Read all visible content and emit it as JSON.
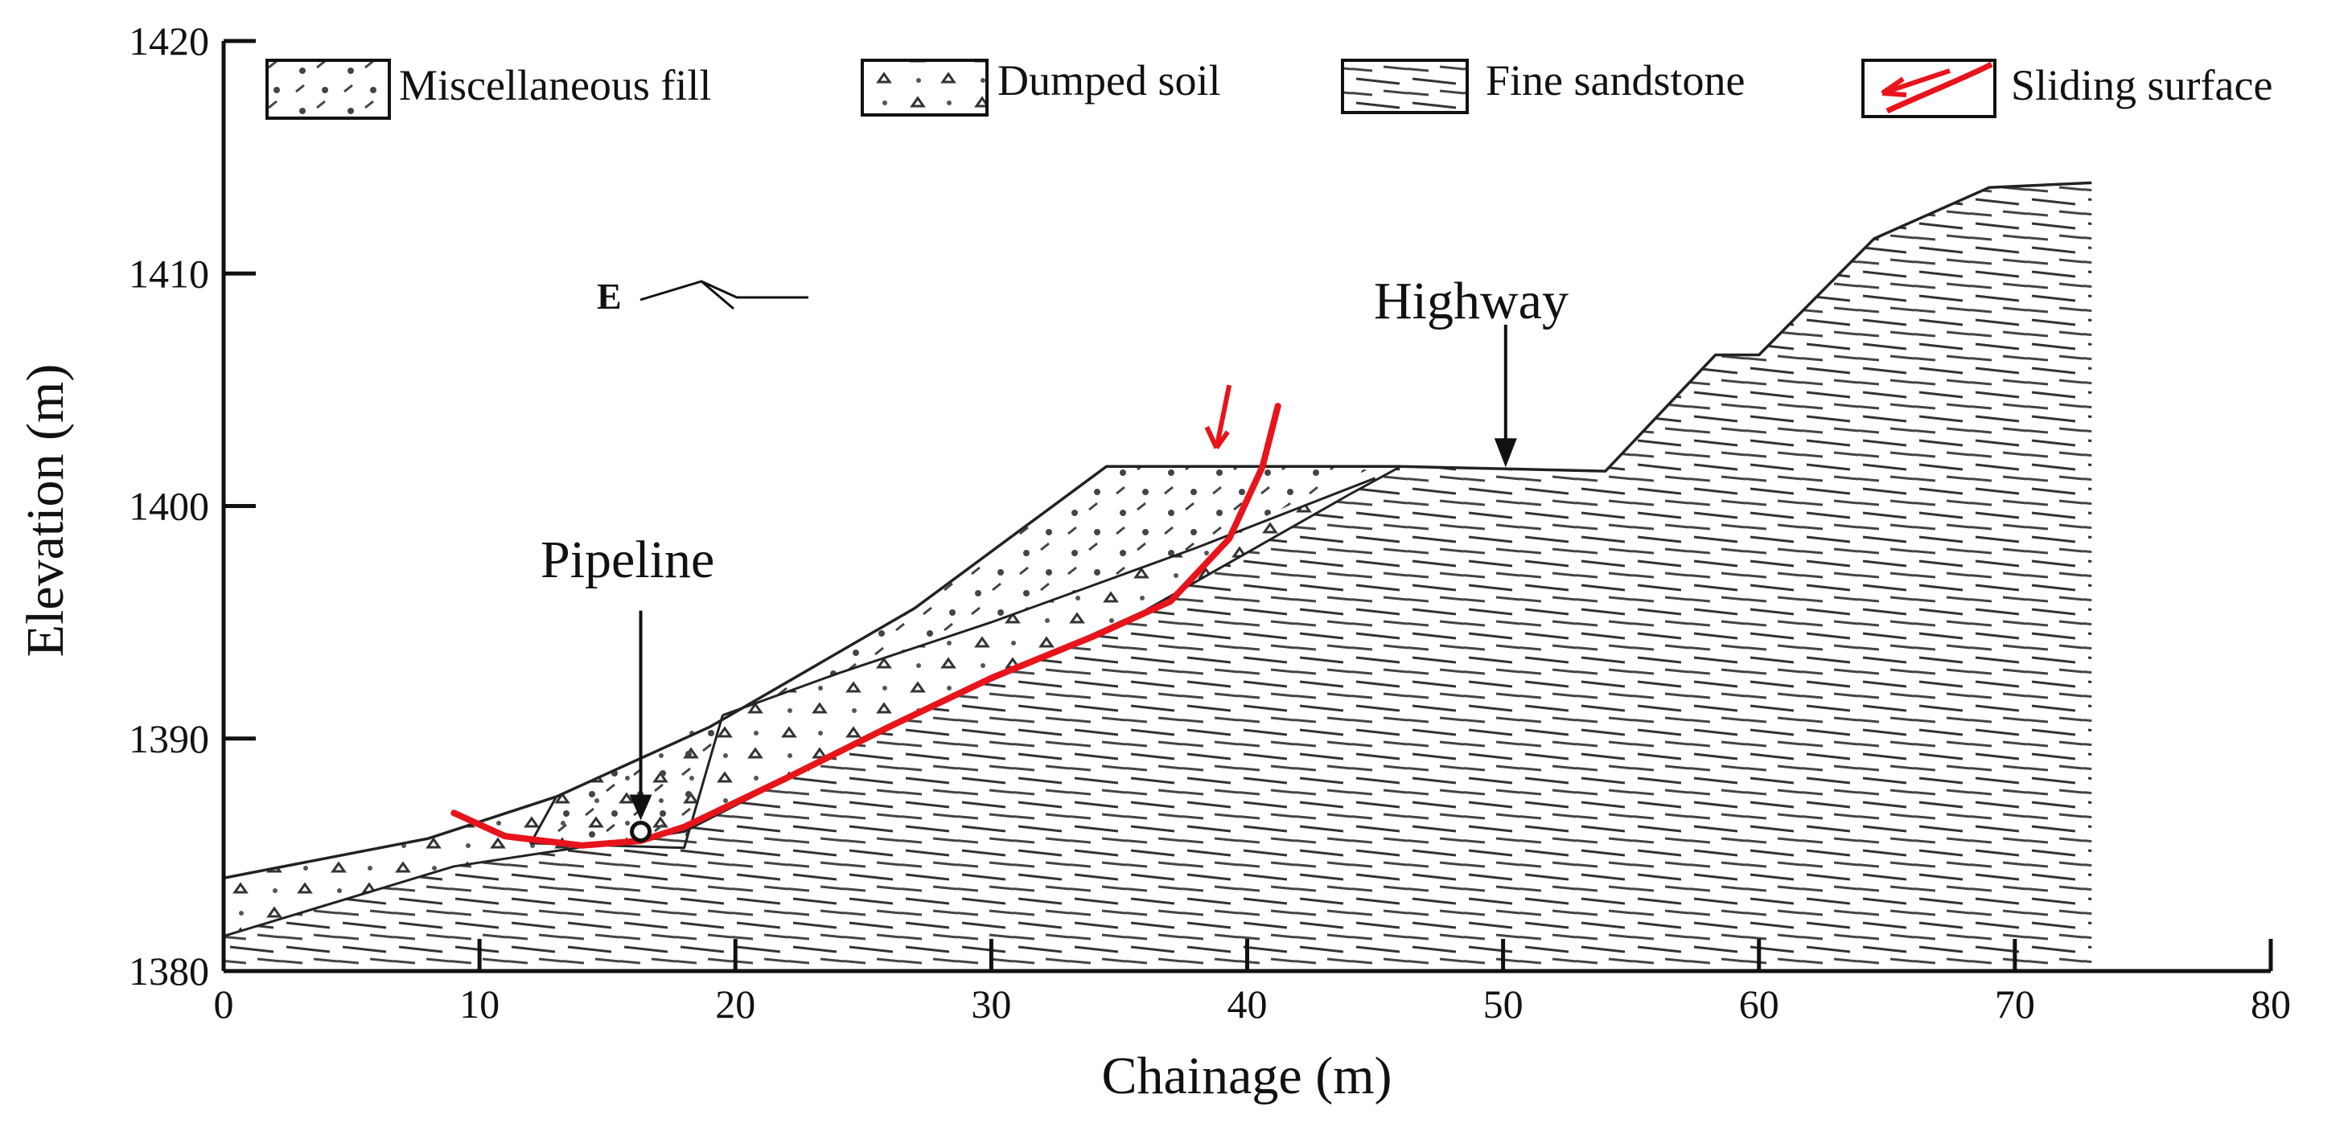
{
  "figure": {
    "xlabel": "Chainage (m)",
    "ylabel": "Elevation (m)",
    "x_ticks": [
      "0",
      "10",
      "20",
      "30",
      "40",
      "50",
      "60",
      "70",
      "80"
    ],
    "y_ticks": [
      "1380",
      "1390",
      "1400",
      "1410",
      "1420"
    ],
    "xlim": [
      0,
      80
    ],
    "ylim": [
      1380,
      1420
    ]
  },
  "legend": {
    "miscellaneous_fill": "Miscellaneous fill",
    "dumped_soil": "Dumped soil",
    "fine_sandstone": "Fine sandstone",
    "sliding_surface": "Sliding surface"
  },
  "annotations": {
    "pipeline": "Pipeline",
    "highway": "Highway",
    "direction": "E"
  },
  "colors": {
    "sliding_surface": "#e8141b",
    "line": "#222222",
    "background": "#ffffff"
  },
  "profile": {
    "ground_surface": [
      [
        0,
        1384
      ],
      [
        8,
        1385.7
      ],
      [
        13,
        1387.5
      ],
      [
        19,
        1390.5
      ],
      [
        27,
        1395.6
      ],
      [
        34.5,
        1401.7
      ],
      [
        46,
        1401.7
      ],
      [
        54,
        1401.5
      ],
      [
        58.3,
        1406.5
      ],
      [
        60,
        1406.5
      ],
      [
        64.5,
        1411.5
      ],
      [
        69,
        1413.7
      ],
      [
        73,
        1413.9
      ]
    ],
    "sliding_surface": [
      [
        9,
        1386.8
      ],
      [
        11,
        1385.8
      ],
      [
        14,
        1385.4
      ],
      [
        16.3,
        1385.6
      ],
      [
        18,
        1386.2
      ],
      [
        22,
        1388.3
      ],
      [
        26,
        1390.5
      ],
      [
        30,
        1392.6
      ],
      [
        34,
        1394.4
      ],
      [
        37,
        1395.9
      ],
      [
        39.3,
        1398.6
      ],
      [
        40.6,
        1401.7
      ],
      [
        41.2,
        1404.3
      ]
    ],
    "pipeline": [
      16.3,
      1386
    ],
    "highway": [
      50.1,
      1401.6
    ]
  }
}
